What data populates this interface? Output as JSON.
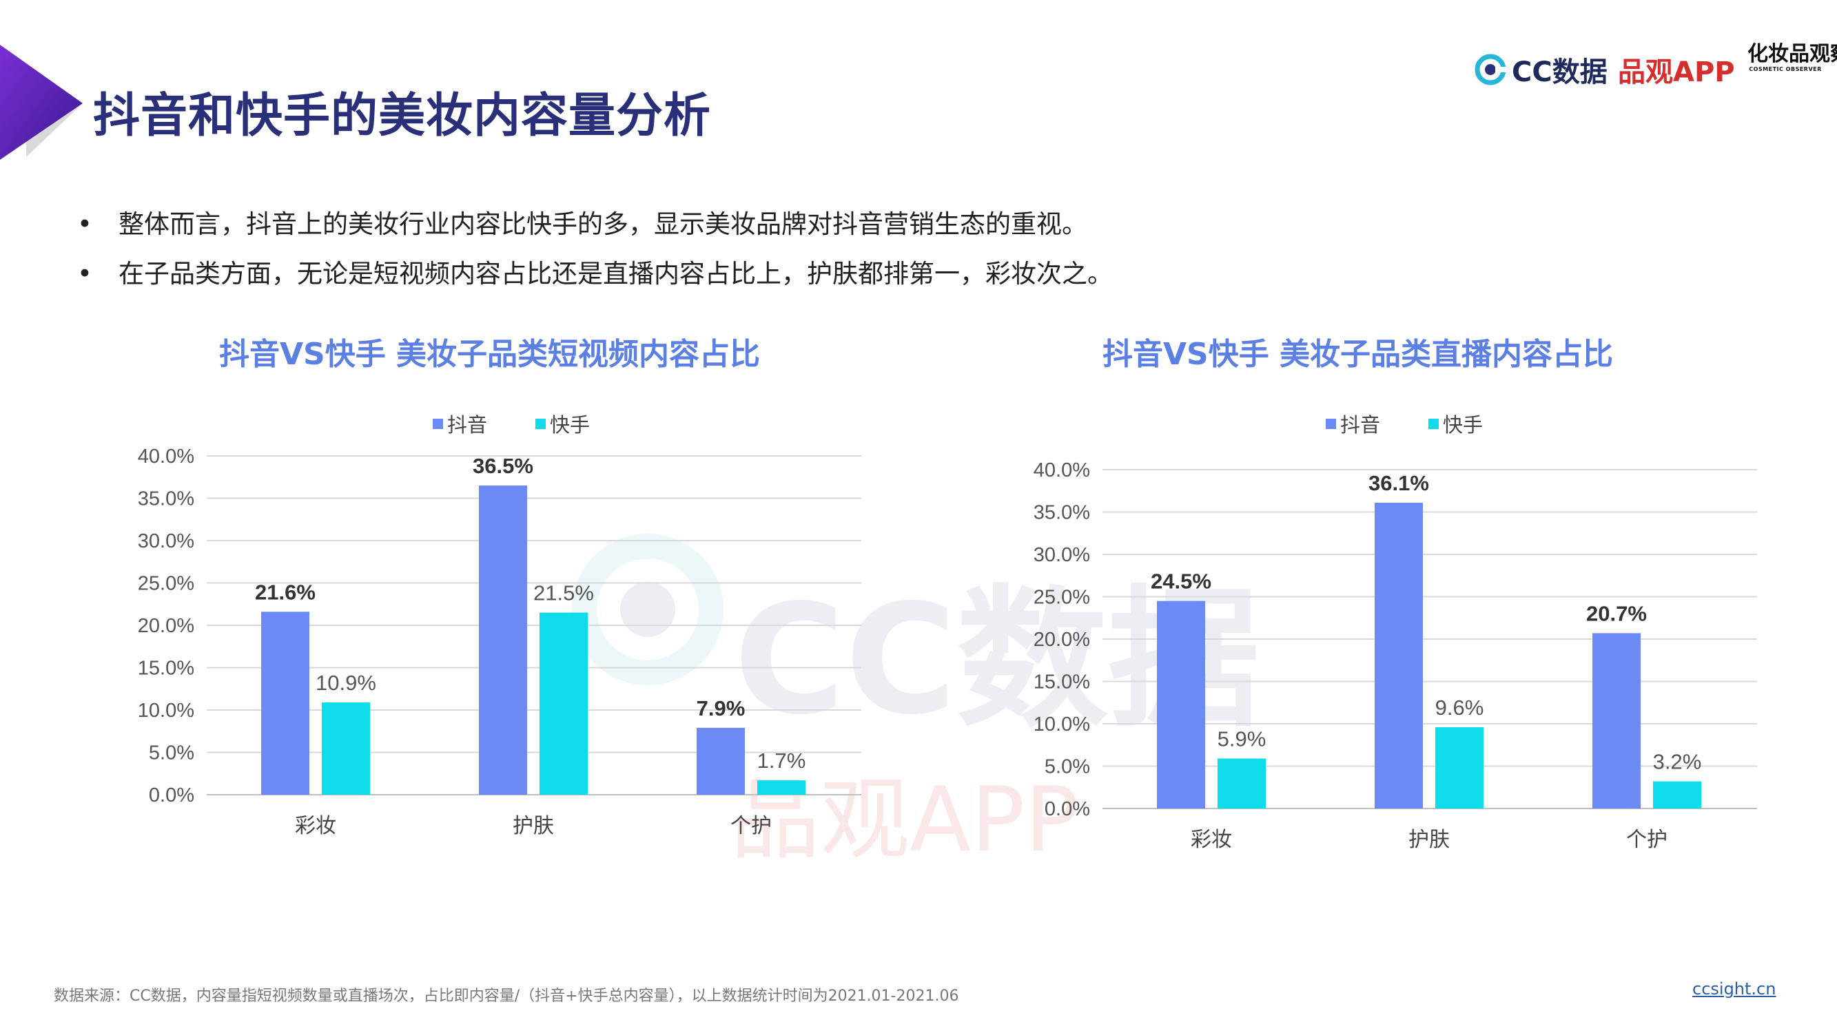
{
  "page": {
    "title": "抖音和快手的美妆内容量分析",
    "bullet_marker": "•",
    "bullets": [
      "整体而言，抖音上的美妆行业内容比快手的多，显示美妆品牌对抖音营销生态的重视。",
      "在子品类方面，无论是短视频内容占比还是直播内容占比上，护肤都排第一，彩妆次之。"
    ]
  },
  "logos": {
    "cc": "CC数据",
    "pinguan": "品观APP",
    "cosmetic_main": "化妆品观察",
    "cosmetic_sub": "COSMETIC OBSERVER"
  },
  "watermarks": {
    "cc": "CC数据",
    "pinguan": "品观APP"
  },
  "footer": {
    "source": "数据来源：CC数据，内容量指短视频数量或直播场次，占比即内容量/（抖音+快手总内容量），以上数据统计时间为2021.01-2021.06",
    "site": "ccsight.cn"
  },
  "colors": {
    "douyin": "#6b8af5",
    "kuaishou": "#0fdceb",
    "title": "#2a2f7a",
    "chart_title": "#5b7fe3"
  },
  "chart_data": [
    {
      "type": "bar",
      "title": "抖音VS快手 美妆子品类短视频内容占比",
      "categories": [
        "彩妆",
        "护肤",
        "个护"
      ],
      "series": [
        {
          "name": "抖音",
          "values": [
            21.6,
            36.5,
            7.9
          ],
          "labels": [
            "21.6%",
            "36.5%",
            "7.9%"
          ]
        },
        {
          "name": "快手",
          "values": [
            10.9,
            21.5,
            1.7
          ],
          "labels": [
            "10.9%",
            "21.5%",
            "1.7%"
          ]
        }
      ],
      "yticks": [
        "0.0%",
        "5.0%",
        "10.0%",
        "15.0%",
        "20.0%",
        "25.0%",
        "30.0%",
        "35.0%",
        "40.0%"
      ],
      "ylim": [
        0,
        40
      ],
      "grid": true,
      "legend": "top-center"
    },
    {
      "type": "bar",
      "title": "抖音VS快手 美妆子品类直播内容占比",
      "categories": [
        "彩妆",
        "护肤",
        "个护"
      ],
      "series": [
        {
          "name": "抖音",
          "values": [
            24.5,
            36.1,
            20.7
          ],
          "labels": [
            "24.5%",
            "36.1%",
            "20.7%"
          ]
        },
        {
          "name": "快手",
          "values": [
            5.9,
            9.6,
            3.2
          ],
          "labels": [
            "5.9%",
            "9.6%",
            "3.2%"
          ]
        }
      ],
      "yticks": [
        "0.0%",
        "5.0%",
        "10.0%",
        "15.0%",
        "20.0%",
        "25.0%",
        "30.0%",
        "35.0%",
        "40.0%"
      ],
      "ylim": [
        0,
        40
      ],
      "grid": true,
      "legend": "top-center"
    }
  ]
}
